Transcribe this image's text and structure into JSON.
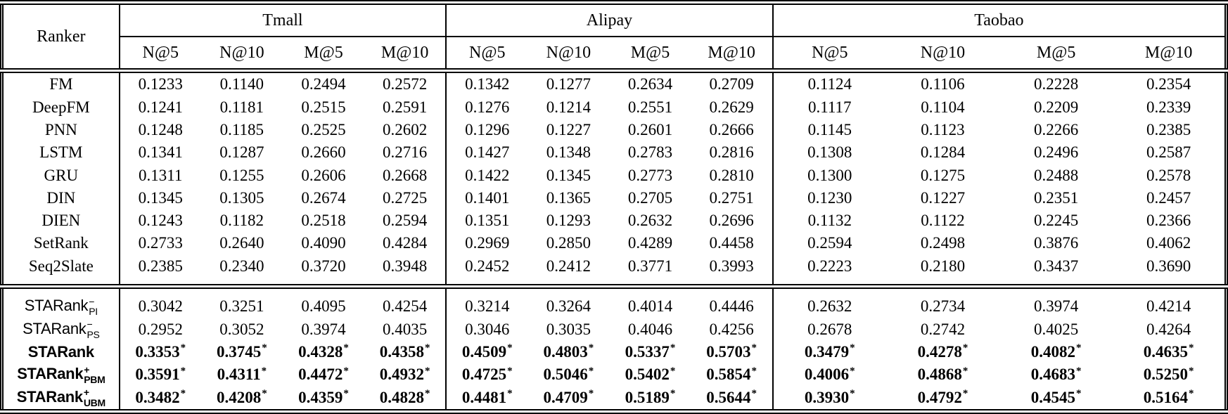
{
  "table": {
    "header": {
      "ranker": "Ranker",
      "datasets": [
        "Tmall",
        "Alipay",
        "Taobao"
      ],
      "metrics": [
        "N@5",
        "N@10",
        "M@5",
        "M@10"
      ]
    },
    "star_marker": "*",
    "sections": [
      {
        "rows": [
          {
            "label": {
              "base": "FM"
            },
            "sans": false,
            "bold": false,
            "starred": false,
            "values": [
              "0.1233",
              "0.1140",
              "0.2494",
              "0.2572",
              "0.1342",
              "0.1277",
              "0.2634",
              "0.2709",
              "0.1124",
              "0.1106",
              "0.2228",
              "0.2354"
            ]
          },
          {
            "label": {
              "base": "DeepFM"
            },
            "sans": false,
            "bold": false,
            "starred": false,
            "values": [
              "0.1241",
              "0.1181",
              "0.2515",
              "0.2591",
              "0.1276",
              "0.1214",
              "0.2551",
              "0.2629",
              "0.1117",
              "0.1104",
              "0.2209",
              "0.2339"
            ]
          },
          {
            "label": {
              "base": "PNN"
            },
            "sans": false,
            "bold": false,
            "starred": false,
            "values": [
              "0.1248",
              "0.1185",
              "0.2525",
              "0.2602",
              "0.1296",
              "0.1227",
              "0.2601",
              "0.2666",
              "0.1145",
              "0.1123",
              "0.2266",
              "0.2385"
            ]
          },
          {
            "label": {
              "base": "LSTM"
            },
            "sans": false,
            "bold": false,
            "starred": false,
            "values": [
              "0.1341",
              "0.1287",
              "0.2660",
              "0.2716",
              "0.1427",
              "0.1348",
              "0.2783",
              "0.2816",
              "0.1308",
              "0.1284",
              "0.2496",
              "0.2587"
            ]
          },
          {
            "label": {
              "base": "GRU"
            },
            "sans": false,
            "bold": false,
            "starred": false,
            "values": [
              "0.1311",
              "0.1255",
              "0.2606",
              "0.2668",
              "0.1422",
              "0.1345",
              "0.2773",
              "0.2810",
              "0.1300",
              "0.1275",
              "0.2488",
              "0.2578"
            ]
          },
          {
            "label": {
              "base": "DIN"
            },
            "sans": false,
            "bold": false,
            "starred": false,
            "values": [
              "0.1345",
              "0.1305",
              "0.2674",
              "0.2725",
              "0.1401",
              "0.1365",
              "0.2705",
              "0.2751",
              "0.1230",
              "0.1227",
              "0.2351",
              "0.2457"
            ]
          },
          {
            "label": {
              "base": "DIEN"
            },
            "sans": false,
            "bold": false,
            "starred": false,
            "values": [
              "0.1243",
              "0.1182",
              "0.2518",
              "0.2594",
              "0.1351",
              "0.1293",
              "0.2632",
              "0.2696",
              "0.1132",
              "0.1122",
              "0.2245",
              "0.2366"
            ]
          },
          {
            "label": {
              "base": "SetRank"
            },
            "sans": false,
            "bold": false,
            "starred": false,
            "values": [
              "0.2733",
              "0.2640",
              "0.4090",
              "0.4284",
              "0.2969",
              "0.2850",
              "0.4289",
              "0.4458",
              "0.2594",
              "0.2498",
              "0.3876",
              "0.4062"
            ]
          },
          {
            "label": {
              "base": "Seq2Slate"
            },
            "sans": false,
            "bold": false,
            "starred": false,
            "values": [
              "0.2385",
              "0.2340",
              "0.3720",
              "0.3948",
              "0.2452",
              "0.2412",
              "0.3771",
              "0.3993",
              "0.2223",
              "0.2180",
              "0.3437",
              "0.3690"
            ]
          }
        ]
      },
      {
        "rows": [
          {
            "label": {
              "base": "STARank",
              "sup": "−",
              "sub": "PI"
            },
            "sans": true,
            "bold": false,
            "starred": false,
            "values": [
              "0.3042",
              "0.3251",
              "0.4095",
              "0.4254",
              "0.3214",
              "0.3264",
              "0.4014",
              "0.4446",
              "0.2632",
              "0.2734",
              "0.3974",
              "0.4214"
            ]
          },
          {
            "label": {
              "base": "STARank",
              "sup": "−",
              "sub": "PS"
            },
            "sans": true,
            "bold": false,
            "starred": false,
            "values": [
              "0.2952",
              "0.3052",
              "0.3974",
              "0.4035",
              "0.3046",
              "0.3035",
              "0.4046",
              "0.4256",
              "0.2678",
              "0.2742",
              "0.4025",
              "0.4264"
            ]
          },
          {
            "label": {
              "base": "STARank"
            },
            "sans": true,
            "bold": true,
            "starred": true,
            "values": [
              "0.3353",
              "0.3745",
              "0.4328",
              "0.4358",
              "0.4509",
              "0.4803",
              "0.5337",
              "0.5703",
              "0.3479",
              "0.4278",
              "0.4082",
              "0.4635"
            ]
          },
          {
            "label": {
              "base": "STARank",
              "sup": "+",
              "sub": "PBM"
            },
            "sans": true,
            "bold": true,
            "starred": true,
            "values": [
              "0.3591",
              "0.4311",
              "0.4472",
              "0.4932",
              "0.4725",
              "0.5046",
              "0.5402",
              "0.5854",
              "0.4006",
              "0.4868",
              "0.4683",
              "0.5250"
            ]
          },
          {
            "label": {
              "base": "STARank",
              "sup": "+",
              "sub": "UBM"
            },
            "sans": true,
            "bold": true,
            "starred": true,
            "values": [
              "0.3482",
              "0.4208",
              "0.4359",
              "0.4828",
              "0.4481",
              "0.4709",
              "0.5189",
              "0.5644",
              "0.3930",
              "0.4792",
              "0.4545",
              "0.5164"
            ]
          }
        ]
      }
    ]
  }
}
